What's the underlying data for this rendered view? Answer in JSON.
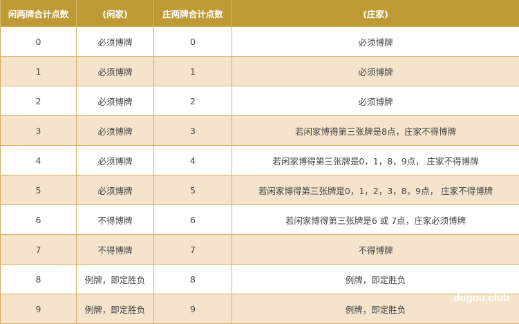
{
  "headers": [
    "闲两牌合计点数",
    "(闲家)",
    "庄两牌合计点数",
    "(庄家)"
  ],
  "rows": [
    [
      "0",
      "必须博牌",
      "0",
      "必须博牌"
    ],
    [
      "1",
      "必须博牌",
      "1",
      "必须博牌"
    ],
    [
      "2",
      "必须博牌",
      "2",
      "必须博牌"
    ],
    [
      "3",
      "必须博牌",
      "3",
      "若闲家博得第三张牌是8点，庄家不得博牌"
    ],
    [
      "4",
      "必须博牌",
      "4",
      "若闲家博得第三张牌是0，1，8，9点， 庄家不得博牌"
    ],
    [
      "5",
      "必须博牌",
      "5",
      "若闲家博得第三张牌是0，1，2，3，8，9点， 庄家不得博牌"
    ],
    [
      "6",
      "不得博牌",
      "6",
      "若闲家博得第三张牌是6 或 7点，庄家必须博牌"
    ],
    [
      "7",
      "不得博牌",
      "7",
      "不得博牌"
    ],
    [
      "8",
      "例牌，即定胜负",
      "8",
      "例牌，即定胜负"
    ],
    [
      "9",
      "例牌，即定胜负",
      "9",
      "例牌，即定胜负"
    ]
  ],
  "watermark": "dugou.club",
  "colors": {
    "header": "#BE9A35",
    "stripe": "#F5E4CB",
    "border": "#D4B060"
  }
}
